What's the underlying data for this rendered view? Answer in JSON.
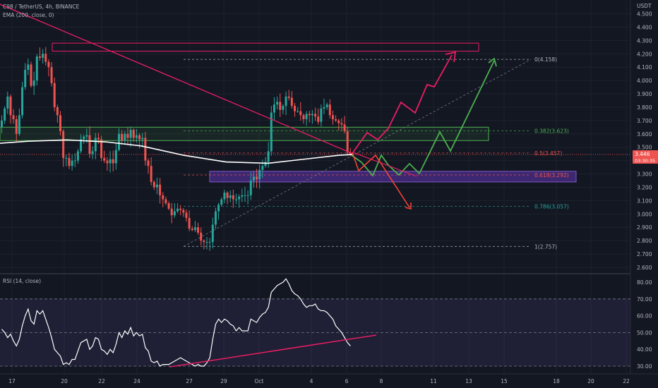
{
  "header": {
    "symbol_line": "C98 / TetherUS, 4h, BINANCE",
    "indicator": "EMA (200, close, 0)",
    "currency": "USDT",
    "rsi_label": "RSI (14, close)"
  },
  "price_badge": {
    "price": "3.446",
    "countdown": "03:30:35"
  },
  "colors": {
    "background": "#131722",
    "up_candle": "#26a69a",
    "down_candle": "#ef5350",
    "ema": "#ffffff",
    "pink": "#e91e63",
    "green_path": "#4caf50",
    "red_arrow": "#f44336",
    "purple_zone": "#3d2b7a",
    "green_zone": "#4caf50",
    "rsi_band": "#7e57c2"
  },
  "chart_data": [
    {
      "type": "candlestick",
      "pair": "C98 / TetherUS",
      "timeframe": "4h",
      "exchange": "BINANCE",
      "y_ticks": [
        "4.500",
        "4.400",
        "4.300",
        "4.200",
        "4.100",
        "4.000",
        "3.900",
        "3.800",
        "3.700",
        "3.600",
        "3.500",
        "3.400",
        "3.300",
        "3.200",
        "3.100",
        "3.000",
        "2.900",
        "2.800",
        "2.700",
        "2.600"
      ],
      "ylim": [
        2.6,
        4.5
      ],
      "x_ticks": [
        "17",
        "20",
        "22",
        "24",
        "27",
        "29",
        "Oct",
        "4",
        "6",
        "8",
        "11",
        "13",
        "15",
        "18",
        "20",
        "22"
      ],
      "current_price": 3.446,
      "fib_levels": [
        {
          "label": "0(4.158)",
          "value": 4.158
        },
        {
          "label": "0.382(3.623)",
          "value": 3.623
        },
        {
          "label": "0.5(3.457)",
          "value": 3.457
        },
        {
          "label": "0.618(3.292)",
          "value": 3.292
        },
        {
          "label": "0.786(3.057)",
          "value": 3.057
        },
        {
          "label": "1(2.757)",
          "value": 2.757
        }
      ],
      "zones": [
        {
          "name": "resistance",
          "from": 4.22,
          "to": 4.28
        },
        {
          "name": "green-zone",
          "from": 3.55,
          "to": 3.65
        },
        {
          "name": "purple-zone",
          "from": 3.24,
          "to": 3.32
        }
      ],
      "closes": [
        3.7,
        3.79,
        3.88,
        3.74,
        3.71,
        3.6,
        3.74,
        3.95,
        4.08,
        4.12,
        3.96,
        4.0,
        4.18,
        4.17,
        4.2,
        4.14,
        4.1,
        3.98,
        3.8,
        3.74,
        3.62,
        3.42,
        3.42,
        3.36,
        3.4,
        3.4,
        3.47,
        3.56,
        3.58,
        3.59,
        3.45,
        3.47,
        3.57,
        3.56,
        3.42,
        3.4,
        3.38,
        3.41,
        3.38,
        3.48,
        3.6,
        3.55,
        3.6,
        3.57,
        3.63,
        3.57,
        3.59,
        3.56,
        3.57,
        3.4,
        3.36,
        3.24,
        3.2,
        3.22,
        3.14,
        3.11,
        3.08,
        3.04,
        2.99,
        3.02,
        3.04,
        3.03,
        3.01,
        2.97,
        2.89,
        2.88,
        2.9,
        2.86,
        2.8,
        2.79,
        2.79,
        2.79,
        2.92,
        3.02,
        3.07,
        3.11,
        3.16,
        3.12,
        3.14,
        3.11,
        3.11,
        3.13,
        3.14,
        3.14,
        3.14,
        3.25,
        3.28,
        3.26,
        3.33,
        3.36,
        3.39,
        3.47,
        3.76,
        3.82,
        3.84,
        3.78,
        3.81,
        3.88,
        3.87,
        3.81,
        3.77,
        3.77,
        3.74,
        3.71,
        3.75,
        3.74,
        3.75,
        3.73,
        3.69,
        3.79,
        3.8,
        3.82,
        3.74,
        3.71,
        3.7,
        3.68,
        3.67,
        3.62,
        3.46,
        3.446
      ]
    },
    {
      "type": "line",
      "name": "RSI (14, close)",
      "y_ticks": [
        "80.00",
        "70.00",
        "60.00",
        "50.00",
        "40.00",
        "30.00"
      ],
      "ylim": [
        25,
        85
      ],
      "band": [
        30,
        70
      ],
      "midline": 50,
      "values": [
        52,
        50,
        47,
        49,
        45,
        42,
        46,
        54,
        60,
        64,
        57,
        55,
        63,
        61,
        63,
        58,
        53,
        47,
        40,
        38,
        36,
        31,
        32,
        31,
        34,
        34,
        39,
        44,
        45,
        46,
        40,
        42,
        47,
        46,
        40,
        39,
        37,
        40,
        38,
        43,
        50,
        47,
        51,
        49,
        53,
        48,
        50,
        48,
        49,
        41,
        39,
        33,
        32,
        33,
        30,
        31,
        31,
        31,
        32,
        33,
        34,
        35,
        34,
        33,
        32,
        31,
        30,
        31,
        30,
        30,
        32,
        35,
        46,
        55,
        58,
        56,
        58,
        57,
        55,
        54,
        51,
        53,
        51,
        51,
        51,
        58,
        57,
        56,
        59,
        61,
        62,
        65,
        74,
        76,
        78,
        79,
        80,
        82,
        79,
        75,
        73,
        72,
        70,
        67,
        65,
        66,
        66,
        67,
        64,
        63,
        63,
        62,
        60,
        58,
        54,
        52,
        50,
        47,
        44,
        42
      ]
    }
  ]
}
